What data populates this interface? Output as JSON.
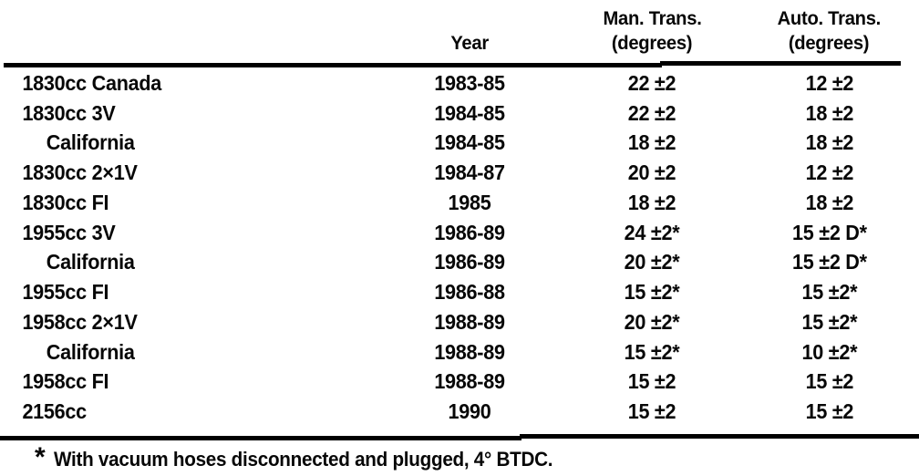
{
  "page": {
    "background_color": "#ffffff",
    "text_color": "#070707",
    "rule_color": "#000000"
  },
  "table": {
    "headers": {
      "model": "",
      "year": "Year",
      "man_trans_line1": "Man. Trans.",
      "man_trans_line2": "(degrees)",
      "auto_trans_line1": "Auto. Trans.",
      "auto_trans_line2": "(degrees)"
    },
    "rows": [
      {
        "model": "1830cc Canada",
        "year": "1983-85",
        "man": "22 ±2",
        "auto": "12 ±2"
      },
      {
        "model": "1830cc 3V",
        "year": "1984-85",
        "man": "22 ±2",
        "auto": "18 ±2"
      },
      {
        "model": "California",
        "year": "1984-85",
        "man": "18 ±2",
        "auto": "18 ±2"
      },
      {
        "model": "1830cc 2×1V",
        "year": "1984-87",
        "man": "20 ±2",
        "auto": "12 ±2"
      },
      {
        "model": "1830cc FI",
        "year": "1985",
        "man": "18 ±2",
        "auto": "18 ±2"
      },
      {
        "model": "1955cc 3V",
        "year": "1986-89",
        "man": "24 ±2*",
        "auto": "15 ±2 D*"
      },
      {
        "model": "California",
        "year": "1986-89",
        "man": "20 ±2*",
        "auto": "15 ±2 D*"
      },
      {
        "model": "1955cc FI",
        "year": "1986-88",
        "man": "15 ±2*",
        "auto": "15 ±2*"
      },
      {
        "model": "1958cc 2×1V",
        "year": "1988-89",
        "man": "20 ±2*",
        "auto": "15 ±2*"
      },
      {
        "model": "California",
        "year": "1988-89",
        "man": "15 ±2*",
        "auto": "10 ±2*"
      },
      {
        "model": "1958cc FI",
        "year": "1988-89",
        "man": "15 ±2",
        "auto": "15 ±2"
      },
      {
        "model": "2156cc",
        "year": "1990",
        "man": "15 ±2",
        "auto": "15 ±2"
      }
    ],
    "footnote_marker": "*",
    "footnote_text": "With vacuum hoses disconnected and plugged, 4° BTDC."
  }
}
